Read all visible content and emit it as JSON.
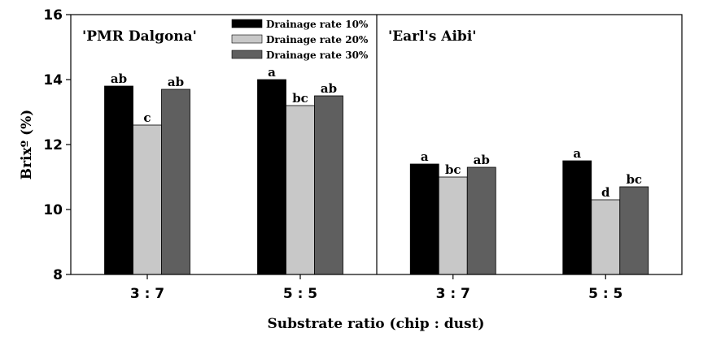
{
  "chart_data": {
    "type": "bar",
    "ylabel": "Brixº (%)",
    "xlabel": "Substrate ratio (chip : dust)",
    "ylim": [
      8,
      16
    ],
    "yticks": [
      "8",
      "10",
      "12",
      "14",
      "16"
    ],
    "ytick_values": [
      8,
      10,
      12,
      14,
      16
    ],
    "legend": {
      "position": "top-center",
      "entries": [
        "Drainage rate 10%",
        "Drainage rate 20%",
        "Drainage rate 30%"
      ]
    },
    "series_colors": [
      "#000000",
      "#c8c8c8",
      "#5f5f5f"
    ],
    "panels": [
      {
        "title": "'PMR Dalgona'",
        "categories": [
          "3 : 7",
          "5 : 5"
        ],
        "series": [
          {
            "name": "Drainage rate 10%",
            "values": [
              13.8,
              14.0
            ],
            "letters": [
              "ab",
              "a"
            ]
          },
          {
            "name": "Drainage rate 20%",
            "values": [
              12.6,
              13.2
            ],
            "letters": [
              "c",
              "bc"
            ]
          },
          {
            "name": "Drainage rate 30%",
            "values": [
              13.7,
              13.5
            ],
            "letters": [
              "ab",
              "ab"
            ]
          }
        ]
      },
      {
        "title": "'Earl's Aibi'",
        "categories": [
          "3 : 7",
          "5 : 5"
        ],
        "series": [
          {
            "name": "Drainage rate 10%",
            "values": [
              11.4,
              11.5
            ],
            "letters": [
              "a",
              "a"
            ]
          },
          {
            "name": "Drainage rate 20%",
            "values": [
              11.0,
              10.3
            ],
            "letters": [
              "bc",
              "d"
            ]
          },
          {
            "name": "Drainage rate 30%",
            "values": [
              11.3,
              10.7
            ],
            "letters": [
              "ab",
              "bc"
            ]
          }
        ]
      }
    ]
  }
}
